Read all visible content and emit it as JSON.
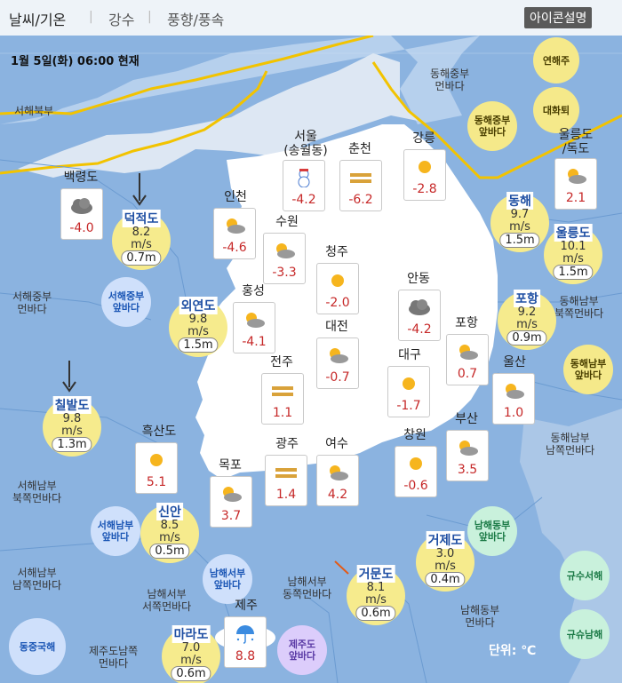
{
  "tabs": [
    {
      "label": "날씨/기온",
      "active": true
    },
    {
      "label": "강수",
      "active": false
    },
    {
      "label": "풍향/풍속",
      "active": false
    }
  ],
  "icon_help_label": "아이콘설명",
  "timestamp": "1월 5일(화) 06:00 현재",
  "unit_label": "단위: ℃",
  "colors": {
    "sea": "#8bb3e0",
    "land": "#ffffff",
    "front": "#f2c300",
    "temp": "#c62828"
  },
  "zone_circles": [
    {
      "label": "연해주",
      "style": "yellow"
    },
    {
      "label": "대화퇴",
      "style": "yellow"
    },
    {
      "label": "동해중부\n앞바다",
      "style": "yellow"
    },
    {
      "label": "동해남부\n앞바다",
      "style": "yellow"
    },
    {
      "label": "서해중부\n앞바다",
      "style": "blue"
    },
    {
      "label": "서해남부\n앞바다",
      "style": "blue"
    },
    {
      "label": "남해서부\n앞바다",
      "style": "blue"
    },
    {
      "label": "남해동부\n앞바다",
      "style": "green"
    },
    {
      "label": "규수서해",
      "style": "green"
    },
    {
      "label": "규슈남해",
      "style": "green"
    },
    {
      "label": "제주도\n앞바다",
      "style": "purple"
    },
    {
      "label": "동중국해",
      "style": "blue"
    }
  ],
  "regions": [
    "서해북부",
    "동해중부\n먼바다",
    "서해중부\n먼바다",
    "동해남부\n북쪽먼바다",
    "서해남부\n북쪽먼바다",
    "동해남부\n남쪽먼바다",
    "서해남부\n남쪽먼바다",
    "남해서부\n동쪽먼바다",
    "남해동부\n먼바다",
    "남해서부\n서쪽먼바다",
    "제주도남쪽\n먼바다"
  ],
  "cities": [
    {
      "name": "백령도",
      "icon": "cloudy-icon",
      "temp": "-4.0"
    },
    {
      "name": "서울\n(송월동)",
      "icon": "snowman-icon",
      "temp": "-4.2"
    },
    {
      "name": "춘천",
      "icon": "haze-icon",
      "temp": "-6.2"
    },
    {
      "name": "강릉",
      "icon": "sun-icon",
      "temp": "-2.8"
    },
    {
      "name": "울릉도\n/독도",
      "icon": "partly-cloudy-icon",
      "temp": "2.1"
    },
    {
      "name": "인천",
      "icon": "partly-cloudy-icon",
      "temp": "-4.6"
    },
    {
      "name": "수원",
      "icon": "partly-cloudy-icon",
      "temp": "-3.3"
    },
    {
      "name": "청주",
      "icon": "sun-icon",
      "temp": "-2.0"
    },
    {
      "name": "안동",
      "icon": "cloudy-icon",
      "temp": "-4.2"
    },
    {
      "name": "홍성",
      "icon": "partly-cloudy-icon",
      "temp": "-4.1"
    },
    {
      "name": "대전",
      "icon": "partly-cloudy-icon",
      "temp": "-0.7"
    },
    {
      "name": "포항",
      "icon": "partly-cloudy-icon",
      "temp": "0.7"
    },
    {
      "name": "전주",
      "icon": "haze-icon",
      "temp": "1.1"
    },
    {
      "name": "대구",
      "icon": "sun-icon",
      "temp": "-1.7"
    },
    {
      "name": "울산",
      "icon": "partly-cloudy-icon",
      "temp": "1.0"
    },
    {
      "name": "흑산도",
      "icon": "sun-icon",
      "temp": "5.1"
    },
    {
      "name": "광주",
      "icon": "haze-icon",
      "temp": "1.4"
    },
    {
      "name": "여수",
      "icon": "partly-cloudy-icon",
      "temp": "4.2"
    },
    {
      "name": "창원",
      "icon": "sun-icon",
      "temp": "-0.6"
    },
    {
      "name": "부산",
      "icon": "partly-cloudy-icon",
      "temp": "3.5"
    },
    {
      "name": "목포",
      "icon": "partly-cloudy-icon",
      "temp": "3.7"
    },
    {
      "name": "제주",
      "icon": "rain-umbrella-icon",
      "temp": "8.8"
    }
  ],
  "buoys": [
    {
      "name": "덕적도",
      "speed": "8.2",
      "unit": "m/s",
      "wave": "0.7m"
    },
    {
      "name": "외연도",
      "speed": "9.8",
      "unit": "m/s",
      "wave": "1.5m"
    },
    {
      "name": "칠발도",
      "speed": "9.8",
      "unit": "m/s",
      "wave": "1.3m"
    },
    {
      "name": "신안",
      "speed": "8.5",
      "unit": "m/s",
      "wave": "0.5m"
    },
    {
      "name": "마라도",
      "speed": "7.0",
      "unit": "m/s",
      "wave": "0.6m"
    },
    {
      "name": "동해",
      "speed": "9.7",
      "unit": "m/s",
      "wave": "1.5m"
    },
    {
      "name": "울릉도",
      "speed": "10.1",
      "unit": "m/s",
      "wave": "1.5m"
    },
    {
      "name": "포항",
      "speed": "9.2",
      "unit": "m/s",
      "wave": "0.9m"
    },
    {
      "name": "거제도",
      "speed": "3.0",
      "unit": "m/s",
      "wave": "0.4m"
    },
    {
      "name": "거문도",
      "speed": "8.1",
      "unit": "m/s",
      "wave": "0.6m"
    }
  ]
}
